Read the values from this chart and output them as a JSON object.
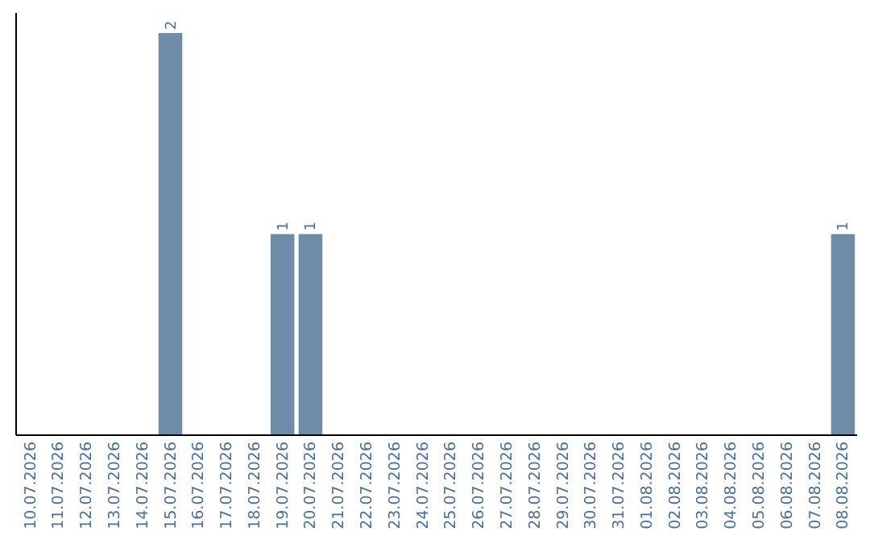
{
  "chart_data": {
    "type": "bar",
    "categories": [
      "10.07.2026",
      "11.07.2026",
      "12.07.2026",
      "13.07.2026",
      "14.07.2026",
      "15.07.2026",
      "16.07.2026",
      "17.07.2026",
      "18.07.2026",
      "19.07.2026",
      "20.07.2026",
      "21.07.2026",
      "22.07.2026",
      "23.07.2026",
      "24.07.2026",
      "25.07.2026",
      "26.07.2026",
      "27.07.2026",
      "28.07.2026",
      "29.07.2026",
      "30.07.2026",
      "31.07.2026",
      "01.08.2026",
      "02.08.2026",
      "03.08.2026",
      "04.08.2026",
      "05.08.2026",
      "06.08.2026",
      "07.08.2026",
      "08.08.2026"
    ],
    "values": [
      0,
      0,
      0,
      0,
      0,
      2,
      0,
      0,
      0,
      1,
      1,
      0,
      0,
      0,
      0,
      0,
      0,
      0,
      0,
      0,
      0,
      0,
      0,
      0,
      0,
      0,
      0,
      0,
      0,
      1
    ],
    "value_labels": [
      null,
      null,
      null,
      null,
      null,
      "2",
      null,
      null,
      null,
      "1",
      "1",
      null,
      null,
      null,
      null,
      null,
      null,
      null,
      null,
      null,
      null,
      null,
      null,
      null,
      null,
      null,
      null,
      null,
      null,
      "1"
    ],
    "color": "#6e8ca8"
  }
}
